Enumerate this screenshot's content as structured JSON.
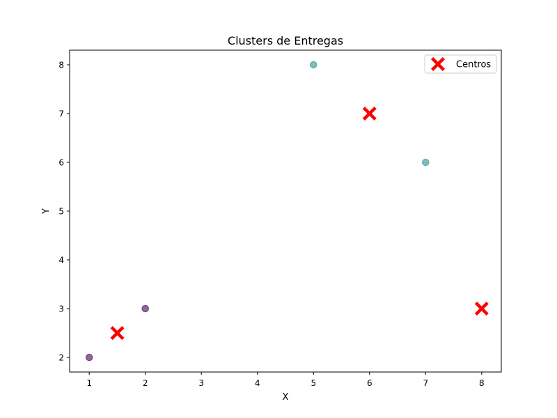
{
  "chart_data": {
    "type": "scatter",
    "title": "Clusters de Entregas",
    "xlabel": "X",
    "ylabel": "Y",
    "xlim": [
      0.65,
      8.35
    ],
    "ylim": [
      1.7,
      8.3
    ],
    "xticks": [
      1,
      2,
      3,
      4,
      5,
      6,
      7,
      8
    ],
    "yticks": [
      2,
      3,
      4,
      5,
      6,
      7,
      8
    ],
    "grid": false,
    "legend": {
      "position": "top-right",
      "entries": [
        "Centros"
      ]
    },
    "points": [
      {
        "x": 1,
        "y": 2,
        "cluster": 0,
        "color": "#440154"
      },
      {
        "x": 2,
        "y": 3,
        "cluster": 0,
        "color": "#440154"
      },
      {
        "x": 5,
        "y": 8,
        "cluster": 1,
        "color": "#21918c"
      },
      {
        "x": 7,
        "y": 6,
        "cluster": 1,
        "color": "#21918c"
      }
    ],
    "point_opacity": 0.6,
    "centers": {
      "name": "Centros",
      "color": "#ff0000",
      "marker": "X",
      "points": [
        {
          "x": 1.5,
          "y": 2.5
        },
        {
          "x": 6,
          "y": 7
        },
        {
          "x": 8,
          "y": 3
        }
      ]
    }
  }
}
